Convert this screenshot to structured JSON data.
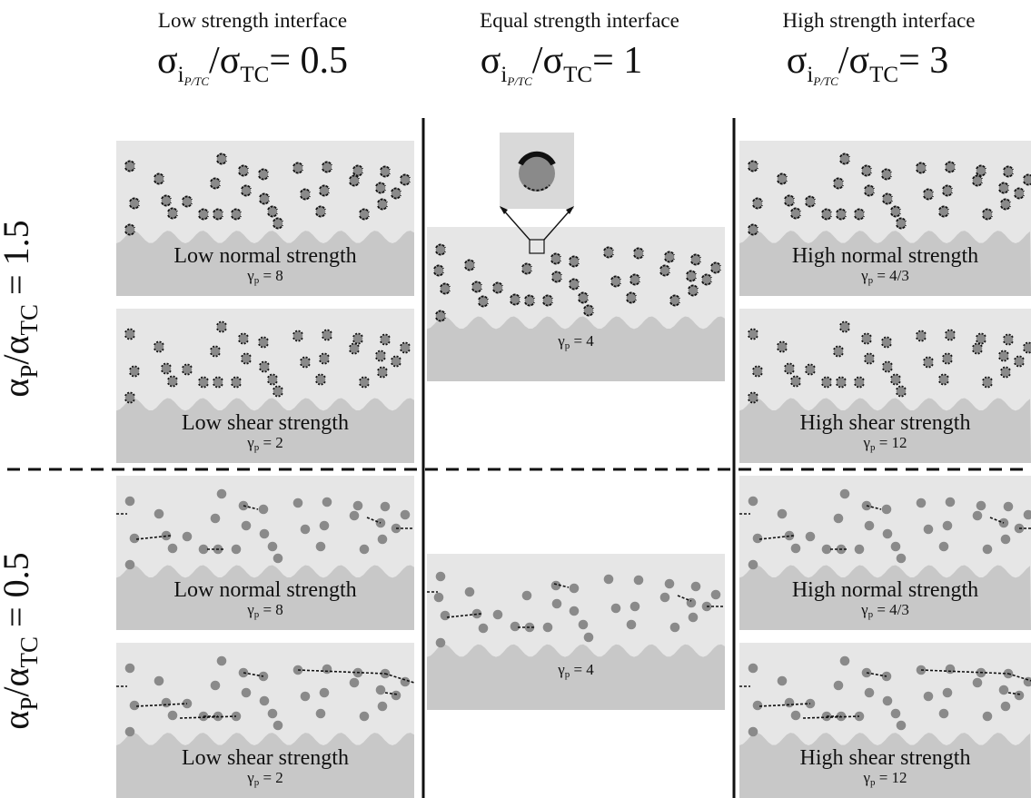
{
  "columns": [
    {
      "title": "Low strength interface",
      "ratio_value": "0.5"
    },
    {
      "title": "Equal strength interface",
      "ratio_value": "1"
    },
    {
      "title": "High strength interface",
      "ratio_value": "3"
    }
  ],
  "symbols": {
    "sigma": "σ",
    "alpha": "α",
    "gamma": "γ",
    "i": "i",
    "pt": "P/TC",
    "tc": "TC",
    "p": "P",
    "p_small": "p",
    "slash": "/",
    "equals": "=",
    "eq_gamma": " = "
  },
  "rows": [
    {
      "ratio_value": "1.5"
    },
    {
      "ratio_value": "0.5"
    }
  ],
  "panels": [
    {
      "label": "Low normal strength",
      "gamma": "8"
    },
    {
      "label": "Low shear strength",
      "gamma": "2"
    },
    {
      "label": "",
      "gamma": "4"
    },
    {
      "label": "High normal strength",
      "gamma": "4/3"
    },
    {
      "label": "High shear strength",
      "gamma": "12"
    },
    {
      "label": "Low normal strength",
      "gamma": "8"
    },
    {
      "label": "Low shear strength",
      "gamma": "2"
    },
    {
      "label": "",
      "gamma": "4"
    },
    {
      "label": "High normal strength",
      "gamma": "4/3"
    },
    {
      "label": "High shear strength",
      "gamma": "12"
    }
  ],
  "colors": {
    "panel_fill": "#e6e6e6",
    "substrate_fill": "#c8c8c8",
    "particle_fill": "#8a8a8a",
    "crack": "#111111"
  }
}
